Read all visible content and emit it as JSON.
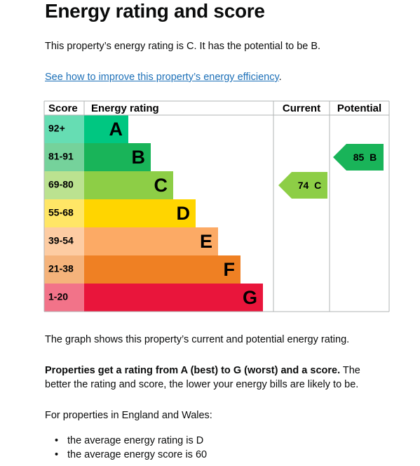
{
  "heading": "Energy rating and score",
  "intro": "This property’s energy rating is C. It has the potential to be B.",
  "link": {
    "text": "See how to improve this property’s energy efficiency",
    "after": "."
  },
  "rating_graph": {
    "headers": {
      "score": "Score",
      "rating": "Energy rating",
      "current": "Current",
      "potential": "Potential"
    },
    "bands": [
      {
        "score": "92+",
        "letter": "A",
        "color": "#00c781"
      },
      {
        "score": "81-91",
        "letter": "B",
        "color": "#19b459"
      },
      {
        "score": "69-80",
        "letter": "C",
        "color": "#8dce46"
      },
      {
        "score": "55-68",
        "letter": "D",
        "color": "#ffd500"
      },
      {
        "score": "39-54",
        "letter": "E",
        "color": "#fcaa65"
      },
      {
        "score": "21-38",
        "letter": "F",
        "color": "#ef8023"
      },
      {
        "score": "1-20",
        "letter": "G",
        "color": "#e9153b"
      }
    ],
    "current": {
      "score": 74,
      "letter": "C"
    },
    "potential": {
      "score": 85,
      "letter": "B"
    }
  },
  "explanation": "The graph shows this property’s current and potential energy rating.",
  "rating_info": {
    "bold": "Properties get a rating from A (best) to G (worst) and a score.",
    "rest": "The better the rating and score, the lower your energy bills are likely to be."
  },
  "region_intro": "For properties in England and Wales:",
  "averages": [
    "the average energy rating is D",
    "the average energy score is 60"
  ]
}
